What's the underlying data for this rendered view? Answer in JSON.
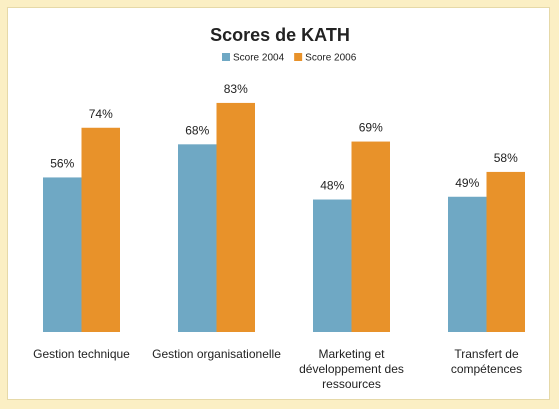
{
  "chart_data": {
    "type": "bar",
    "title": "Scores de KATH",
    "categories": [
      "Gestion technique",
      "Gestion organisationelle",
      "Marketing et développement des ressources",
      "Transfert de compétences"
    ],
    "series": [
      {
        "name": "Score 2004",
        "color": "#6fa8c4",
        "values": [
          56,
          68,
          48,
          49
        ],
        "value_labels": [
          "56%",
          "68%",
          "48%",
          "49%"
        ]
      },
      {
        "name": "Score 2006",
        "color": "#e8922a",
        "values": [
          74,
          83,
          69,
          58
        ],
        "value_labels": [
          "74%",
          "83%",
          "69%",
          "58%"
        ]
      }
    ],
    "ylim": [
      0,
      100
    ],
    "legend": "top"
  }
}
